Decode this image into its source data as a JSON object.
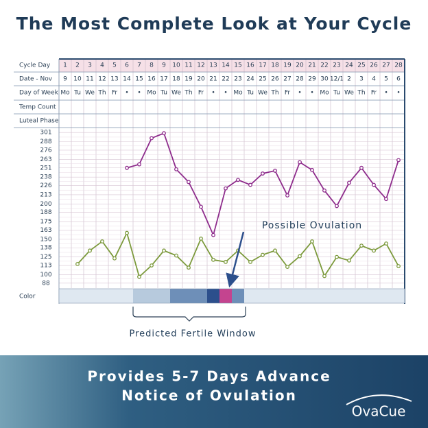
{
  "header": {
    "title": "The Most Complete Look at Your Cycle"
  },
  "chart_data": {
    "type": "line",
    "row_labels": [
      "Cycle Day",
      "Date - Nov",
      "Day of Week",
      "Temp Count",
      "Luteal Phase",
      "Color"
    ],
    "categories": [
      "1",
      "2",
      "3",
      "4",
      "5",
      "6",
      "7",
      "8",
      "9",
      "10",
      "11",
      "12",
      "13",
      "14",
      "15",
      "16",
      "17",
      "18",
      "19",
      "20",
      "21",
      "22",
      "23",
      "24",
      "25",
      "26",
      "27",
      "28"
    ],
    "dates": [
      "9",
      "10",
      "11",
      "12",
      "13",
      "14",
      "15",
      "16",
      "17",
      "18",
      "19",
      "20",
      "21",
      "22",
      "23",
      "24",
      "25",
      "26",
      "27",
      "28",
      "29",
      "30",
      "12/1",
      "2",
      "3",
      "4",
      "5",
      "6"
    ],
    "weekdays": [
      "Mo",
      "Tu",
      "We",
      "Th",
      "Fr",
      "•",
      "•",
      "Mo",
      "Tu",
      "We",
      "Th",
      "Fr",
      "•",
      "•",
      "Mo",
      "Tu",
      "We",
      "Th",
      "Fr",
      "•",
      "•",
      "Mo",
      "Tu",
      "We",
      "Th",
      "Fr",
      "•",
      "•"
    ],
    "series": [
      {
        "color": "#8e2c8c",
        "values": [
          null,
          null,
          null,
          null,
          null,
          251,
          256,
          293,
          300,
          249,
          231,
          196,
          156,
          222,
          234,
          227,
          243,
          247,
          212,
          259,
          248,
          219,
          197,
          230,
          251,
          227,
          207,
          262
        ]
      },
      {
        "color": "#7c9a3c",
        "values": [
          null,
          115,
          134,
          147,
          123,
          159,
          97,
          113,
          134,
          127,
          110,
          151,
          121,
          118,
          134,
          118,
          128,
          134,
          111,
          126,
          147,
          98,
          125,
          120,
          141,
          134,
          144,
          112
        ]
      }
    ],
    "color_row": [
      "#dfe8f1",
      "#dfe8f1",
      "#dfe8f1",
      "#dfe8f1",
      "#dfe8f1",
      "#dfe8f1",
      "#b7cadd",
      "#b7cadd",
      "#b7cadd",
      "#6e8fb8",
      "#6e8fb8",
      "#6e8fb8",
      "#2c4f8c",
      "#c4448f",
      "#6e8fb8",
      "#dfe8f1",
      "#dfe8f1",
      "#dfe8f1",
      "#dfe8f1",
      "#dfe8f1",
      "#dfe8f1",
      "#dfe8f1",
      "#dfe8f1",
      "#dfe8f1",
      "#dfe8f1",
      "#dfe8f1",
      "#dfe8f1",
      "#dfe8f1"
    ],
    "ylim": [
      81,
      308
    ],
    "yticks": [
      301,
      288,
      276,
      263,
      251,
      238,
      226,
      213,
      200,
      188,
      175,
      163,
      150,
      138,
      125,
      113,
      100,
      88
    ],
    "grid": true,
    "annotations": [
      "Possible Ovulation",
      "Predicted Fertile Window"
    ]
  },
  "footer": {
    "lines": [
      "Provides 5-7 Days Advance",
      "Notice of Ovulation"
    ],
    "logo": "OvaCue"
  }
}
